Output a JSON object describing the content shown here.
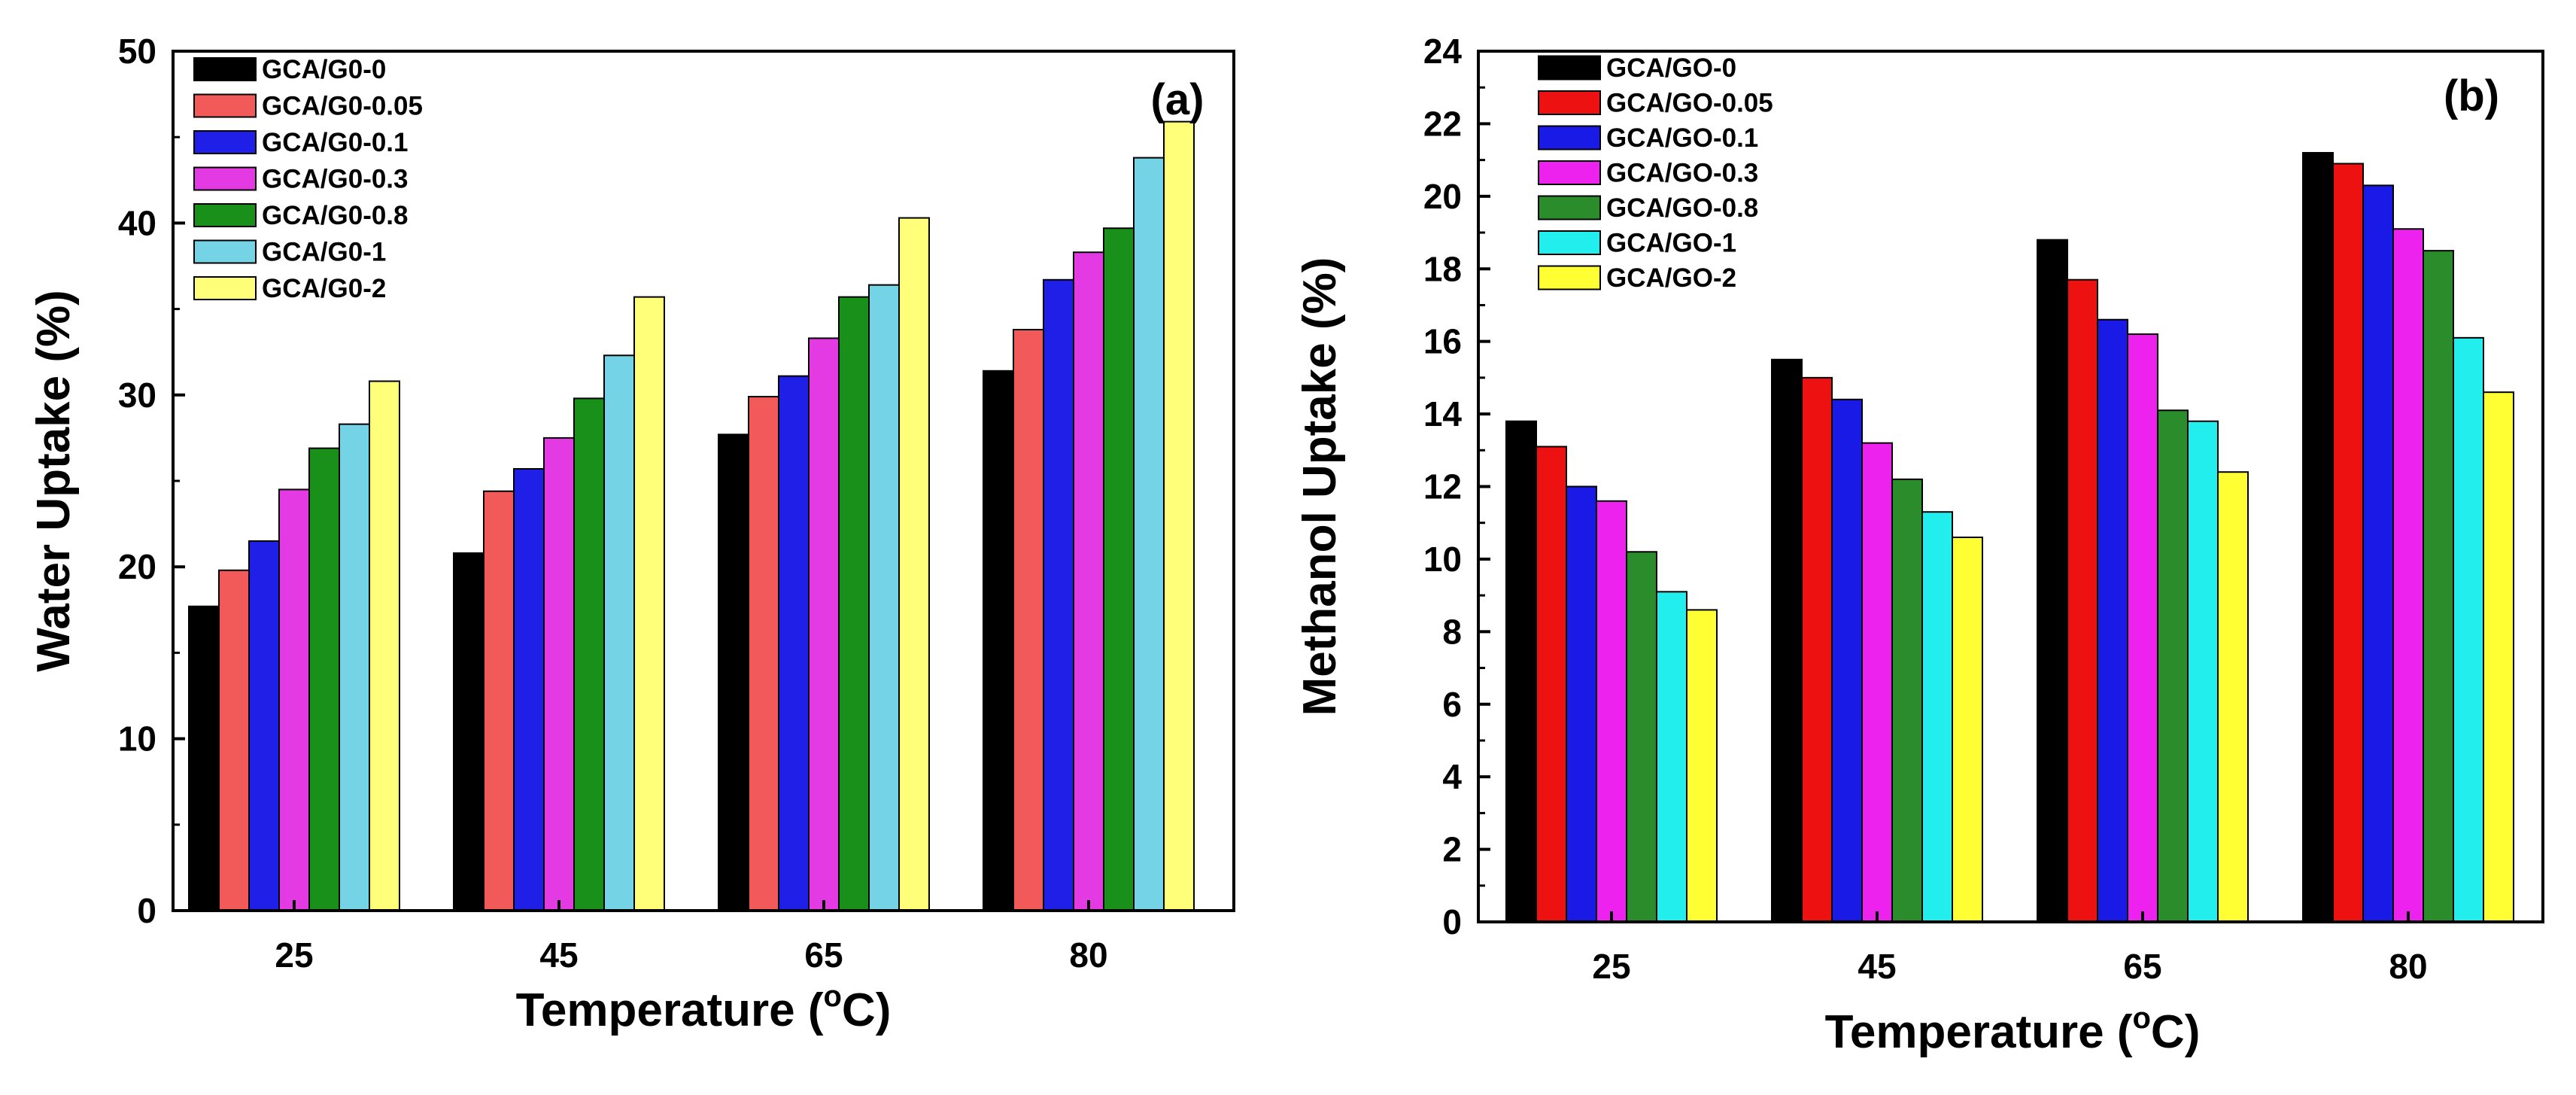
{
  "chart_data": [
    {
      "type": "bar",
      "panel_label": "(a)",
      "title": "",
      "xlabel": "Temperature (",
      "xlabel_sup": "o",
      "xlabel_unit": "C)",
      "ylabel": "Water Uptake (%)",
      "ylim": [
        0,
        50
      ],
      "yticks": [
        "0",
        "10",
        "20",
        "30",
        "40",
        "50"
      ],
      "categories": [
        "25",
        "45",
        "65",
        "80"
      ],
      "legend_position": "top-left",
      "series": [
        {
          "name": "GCA/G0-0",
          "color": "#000000",
          "values": [
            17.7,
            20.8,
            27.7,
            31.4
          ]
        },
        {
          "name": "GCA/G0-0.05",
          "color": "#f25a5a",
          "values": [
            19.8,
            24.4,
            29.9,
            33.8
          ]
        },
        {
          "name": "GCA/G0-0.1",
          "color": "#1f1fe8",
          "values": [
            21.5,
            25.7,
            31.1,
            36.7
          ]
        },
        {
          "name": "GCA/G0-0.3",
          "color": "#e33ae3",
          "values": [
            24.5,
            27.5,
            33.3,
            38.3
          ]
        },
        {
          "name": "GCA/G0-0.8",
          "color": "#18901a",
          "values": [
            26.9,
            29.8,
            35.7,
            39.7
          ]
        },
        {
          "name": "GCA/G0-1",
          "color": "#74d4e6",
          "values": [
            28.3,
            32.3,
            36.4,
            43.8
          ]
        },
        {
          "name": "GCA/G0-2",
          "color": "#ffff7a",
          "values": [
            30.8,
            35.7,
            40.3,
            45.9
          ]
        }
      ]
    },
    {
      "type": "bar",
      "panel_label": "(b)",
      "title": "",
      "xlabel": "Temperature (",
      "xlabel_sup": "o",
      "xlabel_unit": "C)",
      "ylabel": "Methanol Uptake (%)",
      "ylim": [
        0,
        24
      ],
      "yticks": [
        "0",
        "2",
        "4",
        "6",
        "8",
        "10",
        "12",
        "14",
        "16",
        "18",
        "20",
        "22",
        "24"
      ],
      "categories": [
        "25",
        "45",
        "65",
        "80"
      ],
      "legend_position": "top-left",
      "series": [
        {
          "name": "GCA/GO-0",
          "color": "#000000",
          "values": [
            13.8,
            15.5,
            18.8,
            21.2
          ]
        },
        {
          "name": "GCA/GO-0.05",
          "color": "#ee1111",
          "values": [
            13.1,
            15.0,
            17.7,
            20.9
          ]
        },
        {
          "name": "GCA/GO-0.1",
          "color": "#1a1ae6",
          "values": [
            12.0,
            14.4,
            16.6,
            20.3
          ]
        },
        {
          "name": "GCA/GO-0.3",
          "color": "#ee22ee",
          "values": [
            11.6,
            13.2,
            16.2,
            19.1
          ]
        },
        {
          "name": "GCA/GO-0.8",
          "color": "#2a8c2a",
          "values": [
            10.2,
            12.2,
            14.1,
            18.5
          ]
        },
        {
          "name": "GCA/GO-1",
          "color": "#22eeee",
          "values": [
            9.1,
            11.3,
            13.8,
            16.1
          ]
        },
        {
          "name": "GCA/GO-2",
          "color": "#ffff33",
          "values": [
            8.6,
            10.6,
            12.4,
            14.6
          ]
        }
      ]
    }
  ]
}
